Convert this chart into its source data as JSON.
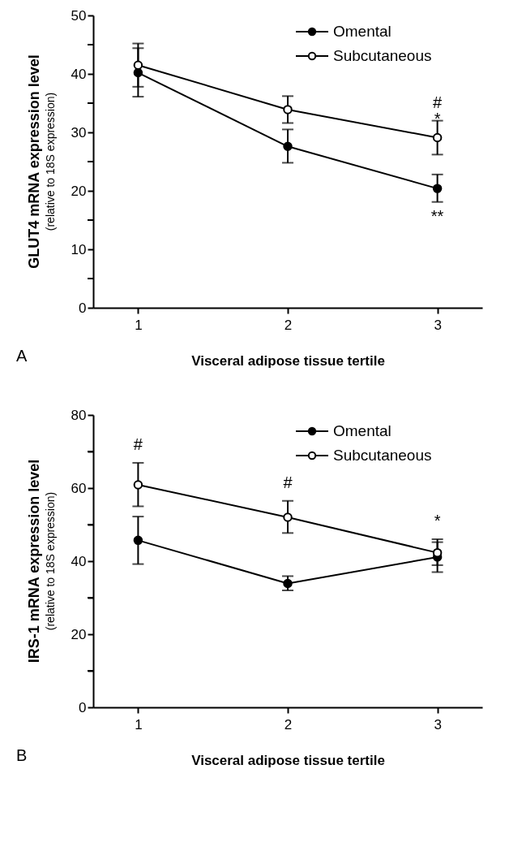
{
  "chart_data": [
    {
      "type": "line",
      "xlabel": "Visceral adipose tissue tertile",
      "ylabel": "GLUT4 mRNA expression level\n(relative to 18S expression)",
      "x": [
        1,
        2,
        3
      ],
      "xlim": [
        0.7,
        3.3
      ],
      "xticks": [
        1,
        2,
        3
      ],
      "ylim": [
        0,
        50
      ],
      "yticks": [
        0,
        {
          "value": 5,
          "label": null
        },
        10,
        {
          "value": 15,
          "label": null
        },
        20,
        {
          "value": 25,
          "label": null
        },
        30,
        {
          "value": 35,
          "label": null
        },
        40,
        {
          "value": 45,
          "label": null
        },
        50
      ],
      "series": [
        {
          "name": "Omental",
          "color": "#000000",
          "values": [
            40.2,
            27.6,
            20.4
          ],
          "errors": [
            [
              36.1,
              44.4
            ],
            [
              24.8,
              30.5
            ],
            [
              18.1,
              22.8
            ]
          ]
        },
        {
          "name": "Subcutaneous",
          "color": "#000000",
          "values": [
            41.5,
            33.9,
            29.1
          ],
          "errors": [
            [
              37.8,
              45.2
            ],
            [
              31.6,
              36.2
            ],
            [
              26.2,
              32.0
            ]
          ]
        }
      ],
      "annotations": [
        {
          "text": "#\n*",
          "x": 3,
          "y": 32.0
        },
        {
          "text": "**",
          "x": 3,
          "y": 18.1
        },
        "A"
      ],
      "legend": "top right",
      "grid": false,
      "marker": "circle",
      "line_style": "solid"
    },
    {
      "type": "line",
      "xlabel": "Visceral adipose tissue tertile",
      "ylabel": "IRS-1 mRNA expression level\n(relative to 18S expression)",
      "x": [
        1,
        2,
        3
      ],
      "xlim": [
        0.7,
        3.3
      ],
      "xticks": [
        1,
        2,
        3
      ],
      "ylim": [
        0,
        80
      ],
      "yticks": [
        0,
        {
          "value": 10,
          "label": null
        },
        20,
        {
          "value": 30,
          "label": null
        },
        40,
        {
          "value": 50,
          "label": null
        },
        60,
        {
          "value": 70,
          "label": null
        },
        80
      ],
      "series": [
        {
          "name": "Omental",
          "color": "#000000",
          "values": [
            45.7,
            33.9,
            41.1
          ],
          "errors": [
            [
              39.2,
              52.2
            ],
            [
              32.0,
              35.9
            ],
            [
              37.0,
              45.2
            ]
          ]
        },
        {
          "name": "Subcutaneous",
          "color": "#000000",
          "values": [
            60.9,
            52.0,
            42.3
          ],
          "errors": [
            [
              55.0,
              66.9
            ],
            [
              47.7,
              56.5
            ],
            [
              38.9,
              46.0
            ]
          ]
        }
      ],
      "annotations": [
        {
          "text": "#",
          "x": 1,
          "y": 66.9
        },
        {
          "text": "#",
          "x": 2,
          "y": 56.5
        },
        {
          "text": "*",
          "x": 3,
          "y": 46.0
        },
        "B"
      ],
      "legend": "top right",
      "grid": false,
      "marker": "circle",
      "line_style": "solid"
    }
  ]
}
